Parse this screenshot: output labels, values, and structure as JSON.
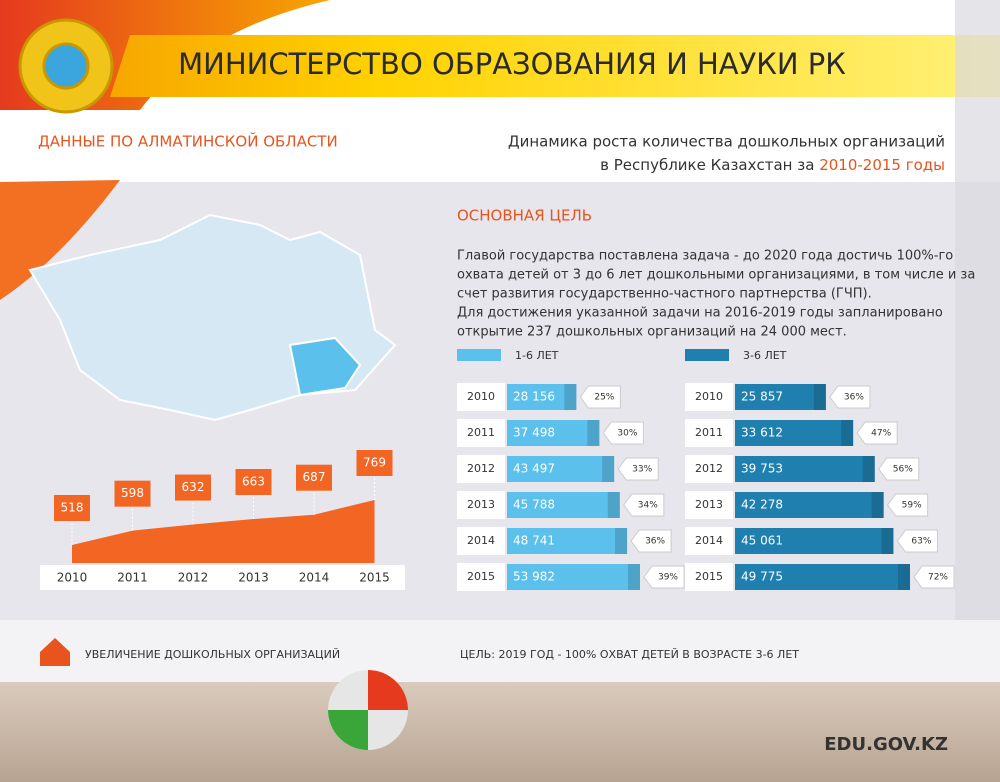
{
  "header": {
    "title": "МИНИСТЕРСТВО ОБРАЗОВАНИЯ И НАУКИ РК"
  },
  "region": "ДАННЫЕ ПО АЛМАТИНСКОЙ ОБЛАСТИ",
  "dynamics": {
    "line1": "Динамика роста количества дошкольных организаций",
    "line2": "в Республике Казахстан за ",
    "period": "2010-2015 годы"
  },
  "goal": {
    "title": "ОСНОВНАЯ ЦЕЛЬ",
    "lines": [
      "Главой государства поставлена задача - до 2020 года достичь 100%-го",
      "охвата детей от 3 до 6 лет дошкольными организациями, в том числе и за",
      "счет развития государственно-частного партнерства (ГЧП).",
      "Для достижения указанной задачи на 2016-2019 годы запланировано",
      "открытие 237 дошкольных организаций на 24 000 мест."
    ]
  },
  "chart_data": [
    {
      "type": "area",
      "categories": [
        "2010",
        "2011",
        "2012",
        "2013",
        "2014",
        "2015"
      ],
      "values": [
        518,
        598,
        632,
        663,
        687,
        769
      ],
      "color": "#f26522"
    },
    {
      "type": "bar",
      "name": "1-6 ЛЕТ",
      "color": "#5bc0eb",
      "categories": [
        "2010",
        "2011",
        "2012",
        "2013",
        "2014",
        "2015"
      ],
      "values": [
        28156,
        37498,
        43497,
        45788,
        48741,
        53982
      ],
      "value_labels": [
        "28 156",
        "37 498",
        "43 497",
        "45 788",
        "48 741",
        "53 982"
      ],
      "shares": [
        25,
        30,
        33,
        34,
        36,
        39
      ],
      "share_labels": [
        "25%",
        "30%",
        "33%",
        "34%",
        "36%",
        "39%"
      ]
    },
    {
      "type": "bar",
      "name": "3-6 ЛЕТ",
      "color": "#1f7fae",
      "categories": [
        "2010",
        "2011",
        "2012",
        "2013",
        "2014",
        "2015"
      ],
      "values": [
        25857,
        33612,
        39753,
        42278,
        45061,
        49775
      ],
      "value_labels": [
        "25 857",
        "33 612",
        "39 753",
        "42 278",
        "45 061",
        "49 775"
      ],
      "shares": [
        36,
        47,
        56,
        59,
        63,
        72
      ],
      "share_labels": [
        "36%",
        "47%",
        "56%",
        "59%",
        "63%",
        "72%"
      ]
    }
  ],
  "footer": {
    "left": "УВЕЛИЧЕНИЕ ДОШКОЛЬНЫХ ОРГАНИЗАЦИЙ",
    "right": "ЦЕЛЬ: 2019 ГОД - 100% ОХВАТ ДЕТЕЙ В ВОЗРАСТЕ 3-6 ЛЕТ"
  },
  "site": "EDU.GOV.KZ"
}
